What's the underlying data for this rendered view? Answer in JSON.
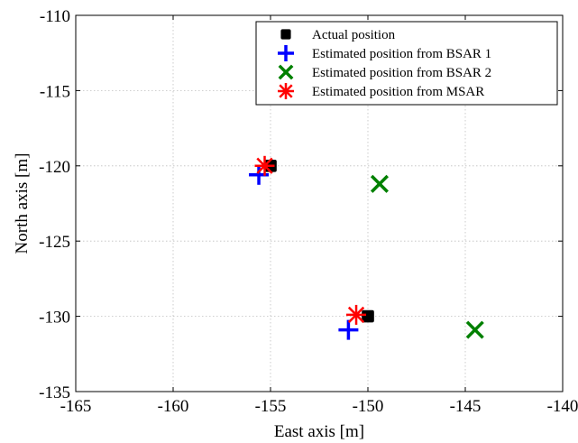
{
  "chart_data": {
    "type": "scatter",
    "xlabel": "East axis [m]",
    "ylabel": "North axis [m]",
    "xlim": [
      -165,
      -140
    ],
    "ylim": [
      -135,
      -110
    ],
    "xticks": [
      -165,
      -160,
      -155,
      -150,
      -145,
      -140
    ],
    "yticks": [
      -110,
      -115,
      -120,
      -125,
      -130,
      -135
    ],
    "grid": true,
    "legend_position": "top-right",
    "series": [
      {
        "name": "Actual position",
        "marker": "square",
        "color": "#000000",
        "points": [
          [
            -155.0,
            -120.0
          ],
          [
            -150.0,
            -130.0
          ]
        ]
      },
      {
        "name": "Estimated position from BSAR 1",
        "marker": "plus",
        "color": "#0000ff",
        "points": [
          [
            -155.6,
            -120.6
          ],
          [
            -151.0,
            -130.9
          ]
        ]
      },
      {
        "name": "Estimated position from BSAR 2",
        "marker": "x",
        "color": "#008000",
        "points": [
          [
            -149.4,
            -121.2
          ],
          [
            -144.5,
            -130.9
          ]
        ]
      },
      {
        "name": "Estimated position from MSAR",
        "marker": "asterisk",
        "color": "#ff0000",
        "points": [
          [
            -155.3,
            -120.0
          ],
          [
            -150.6,
            -129.9
          ]
        ]
      }
    ]
  }
}
